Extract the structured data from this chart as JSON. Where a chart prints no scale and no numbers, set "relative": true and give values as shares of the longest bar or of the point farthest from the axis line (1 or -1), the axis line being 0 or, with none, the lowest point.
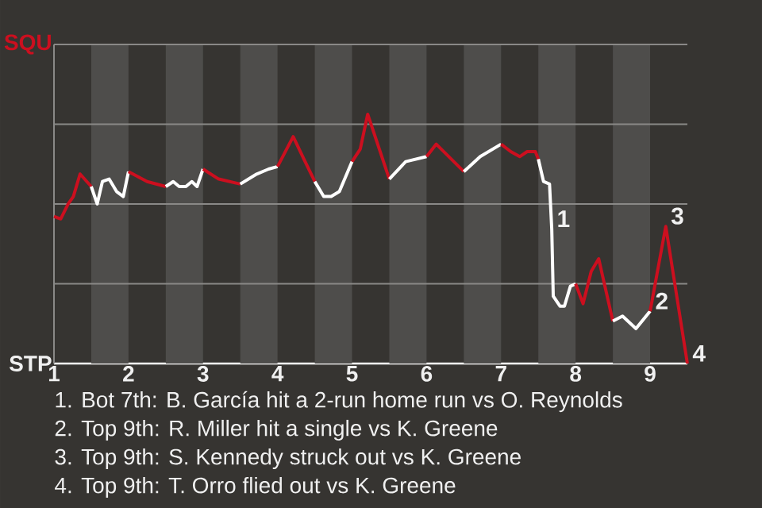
{
  "chart_data": {
    "type": "line",
    "relative": true,
    "xlim": [
      1,
      9.5
    ],
    "xticks": [
      1,
      2,
      3,
      4,
      5,
      6,
      7,
      8,
      9
    ],
    "grid": "y",
    "marker": "none",
    "line_style": "solid",
    "bands": [
      {
        "axis": "x",
        "from": 1.5,
        "to": 2,
        "color": "#4e4d4b"
      },
      {
        "axis": "x",
        "from": 2.5,
        "to": 3,
        "color": "#4e4d4b"
      },
      {
        "axis": "x",
        "from": 3.5,
        "to": 4,
        "color": "#4e4d4b"
      },
      {
        "axis": "x",
        "from": 4.5,
        "to": 5,
        "color": "#4e4d4b"
      },
      {
        "axis": "x",
        "from": 5.5,
        "to": 6,
        "color": "#4e4d4b"
      },
      {
        "axis": "x",
        "from": 6.5,
        "to": 7,
        "color": "#4e4d4b"
      },
      {
        "axis": "x",
        "from": 7.5,
        "to": 8,
        "color": "#4e4d4b"
      },
      {
        "axis": "x",
        "from": 8.5,
        "to": 9,
        "color": "#4e4d4b"
      }
    ],
    "series": [
      {
        "color": "#cc0f1f",
        "x": [
          1,
          1.09,
          1.19,
          1.26,
          1.35,
          1.5
        ],
        "values": [
          0.59,
          0.58,
          0.64,
          0.67,
          0.76,
          0.71
        ]
      },
      {
        "color": "#ffffff",
        "x": [
          1.5,
          1.58,
          1.65,
          1.74,
          1.84,
          1.93,
          2
        ],
        "values": [
          0.71,
          0.64,
          0.73,
          0.74,
          0.69,
          0.67,
          0.77
        ]
      },
      {
        "color": "#cc0f1f",
        "x": [
          2,
          2.25,
          2.5
        ],
        "values": [
          0.77,
          0.73,
          0.71
        ]
      },
      {
        "color": "#ffffff",
        "x": [
          2.5,
          2.6,
          2.68,
          2.77,
          2.85,
          2.92,
          3
        ],
        "values": [
          0.71,
          0.73,
          0.71,
          0.71,
          0.73,
          0.71,
          0.78
        ]
      },
      {
        "color": "#cc0f1f",
        "x": [
          3,
          3.21,
          3.5
        ],
        "values": [
          0.78,
          0.74,
          0.72
        ]
      },
      {
        "color": "#ffffff",
        "x": [
          3.5,
          3.72,
          3.88,
          4
        ],
        "values": [
          0.72,
          0.76,
          0.78,
          0.79
        ]
      },
      {
        "color": "#cc0f1f",
        "x": [
          4,
          4.21,
          4.37,
          4.5
        ],
        "values": [
          0.79,
          0.91,
          0.81,
          0.73
        ]
      },
      {
        "color": "#ffffff",
        "x": [
          4.5,
          4.62,
          4.72,
          4.83,
          5
        ],
        "values": [
          0.73,
          0.67,
          0.67,
          0.69,
          0.81
        ]
      },
      {
        "color": "#cc0f1f",
        "x": [
          5,
          5.11,
          5.21,
          5.5
        ],
        "values": [
          0.81,
          0.86,
          1,
          0.74
        ]
      },
      {
        "color": "#ffffff",
        "x": [
          5.5,
          5.72,
          6
        ],
        "values": [
          0.74,
          0.81,
          0.83
        ]
      },
      {
        "color": "#cc0f1f",
        "x": [
          6,
          6.13,
          6.5
        ],
        "values": [
          0.83,
          0.88,
          0.77
        ]
      },
      {
        "color": "#ffffff",
        "x": [
          6.5,
          6.72,
          7
        ],
        "values": [
          0.77,
          0.83,
          0.88
        ]
      },
      {
        "color": "#cc0f1f",
        "x": [
          7,
          7.13,
          7.25,
          7.35,
          7.46,
          7.5
        ],
        "values": [
          0.88,
          0.85,
          0.83,
          0.85,
          0.85,
          0.82
        ]
      },
      {
        "color": "#ffffff",
        "x": [
          7.5,
          7.57,
          7.65,
          7.68,
          7.7,
          7.79,
          7.85,
          7.93,
          8
        ],
        "values": [
          0.82,
          0.73,
          0.72,
          0.54,
          0.27,
          0.23,
          0.23,
          0.31,
          0.32
        ]
      },
      {
        "color": "#cc0f1f",
        "x": [
          8,
          8.1,
          8.21,
          8.31,
          8.5
        ],
        "values": [
          0.32,
          0.24,
          0.37,
          0.42,
          0.17
        ]
      },
      {
        "color": "#ffffff",
        "x": [
          8.5,
          8.63,
          8.81,
          9
        ],
        "values": [
          0.17,
          0.19,
          0.14,
          0.21
        ]
      },
      {
        "color": "#cc0f1f",
        "x": [
          9,
          9.21,
          9.5
        ],
        "values": [
          0.21,
          0.55,
          0
        ]
      }
    ],
    "annotations": [
      {
        "text": "1",
        "x": 7.68,
        "y": 0.54
      },
      {
        "text": "2",
        "x": 9,
        "y": 0.21
      },
      {
        "text": "3",
        "x": 9.21,
        "y": 0.55
      },
      {
        "text": "4",
        "x": 9.5,
        "y": 0
      },
      "SQU",
      "STP",
      "1. Bot 7th: B. García hit a 2-run home run vs O. Reynolds",
      "2. Top 9th: R. Miller hit a single vs K. Greene",
      "3. Top 9th: S. Kennedy struck out vs K. Greene",
      "4. Top 9th: T. Orro flied out vs K. Greene"
    ]
  }
}
